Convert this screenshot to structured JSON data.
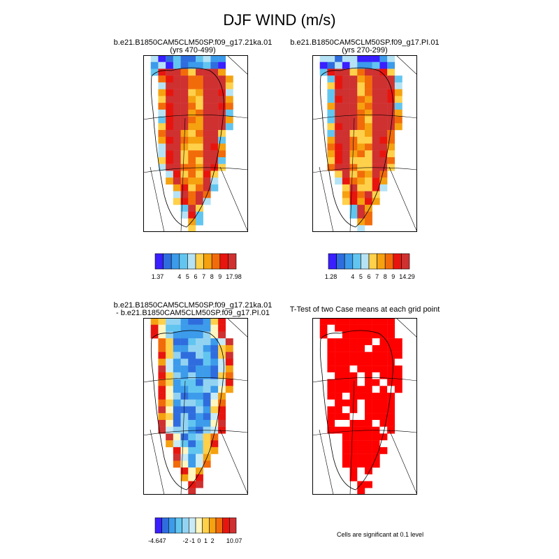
{
  "page_title": "DJF WIND (m/s)",
  "panels": [
    {
      "id": "p1",
      "title_line1": "b.e21.B1850CAM5CLM50SP.f09_g17.21ka.01",
      "title_line2": "(yrs 470-499)"
    },
    {
      "id": "p2",
      "title_line1": "b.e21.B1850CAM5CLM50SP.f09_g17.PI.01",
      "title_line2": "(yrs 270-299)"
    },
    {
      "id": "p3",
      "title_line1": "b.e21.B1850CAM5CLM50SP.f09_g17.21ka.01",
      "title_line2": "- b.e21.B1850CAM5CLM50SP.f09_g17.PI.01"
    },
    {
      "id": "p4",
      "title_line1": "T-Test of two Case means at each grid point",
      "title_line2": ""
    }
  ],
  "colorbars": [
    {
      "id": "cb1",
      "colors": [
        "#3a1fff",
        "#2f6dde",
        "#3c9bea",
        "#62c5f0",
        "#b5e3f5",
        "#ffd04a",
        "#f5a110",
        "#f26b0a",
        "#e8150f",
        "#cf3030"
      ],
      "tick_labels": [
        "1.37",
        "4",
        "5",
        "6",
        "7",
        "8",
        "9",
        "17.98"
      ]
    },
    {
      "id": "cb2",
      "colors": [
        "#3a1fff",
        "#2f6dde",
        "#3c9bea",
        "#62c5f0",
        "#b5e3f5",
        "#ffd04a",
        "#f5a110",
        "#f26b0a",
        "#e8150f",
        "#cf3030"
      ],
      "tick_labels": [
        "1.28",
        "4",
        "5",
        "6",
        "7",
        "8",
        "9",
        "14.29"
      ]
    },
    {
      "id": "cb3",
      "colors": [
        "#3a1fff",
        "#2f6dde",
        "#3c9bea",
        "#62c5f0",
        "#93d3f2",
        "#c8ebf6",
        "#fff6c0",
        "#ffd04a",
        "#f5a110",
        "#f26b0a",
        "#e8150f",
        "#cf3030"
      ],
      "tick_labels": [
        "-4.647",
        "-2",
        "-1",
        "0",
        "1",
        "2",
        "10.07"
      ]
    }
  ],
  "significance_note": "Cells are significant at 0.1 level",
  "chart_data": [
    {
      "type": "heatmap",
      "title": "b.e21.B1850CAM5CLM50SP.f09_g17.21ka.01 (yrs 470-499)",
      "variable": "DJF WIND (m/s)",
      "range": [
        1.37,
        17.98
      ],
      "levels": [
        4,
        5,
        6,
        7,
        8,
        9
      ]
    },
    {
      "type": "heatmap",
      "title": "b.e21.B1850CAM5CLM50SP.f09_g17.PI.01 (yrs 270-299)",
      "variable": "DJF WIND (m/s)",
      "range": [
        1.28,
        14.29
      ],
      "levels": [
        4,
        5,
        6,
        7,
        8,
        9
      ]
    },
    {
      "type": "heatmap",
      "title": "b.e21.B1850CAM5CLM50SP.f09_g17.21ka.01 - b.e21.B1850CAM5CLM50SP.f09_g17.PI.01",
      "variable": "DJF WIND difference (m/s)",
      "range": [
        -4.647,
        10.07
      ],
      "levels": [
        -2,
        -1,
        0,
        1,
        2
      ]
    },
    {
      "type": "heatmap",
      "title": "T-Test of two Case means at each grid point",
      "note": "Cells are significant at 0.1 level",
      "color": "#ff0000"
    }
  ]
}
